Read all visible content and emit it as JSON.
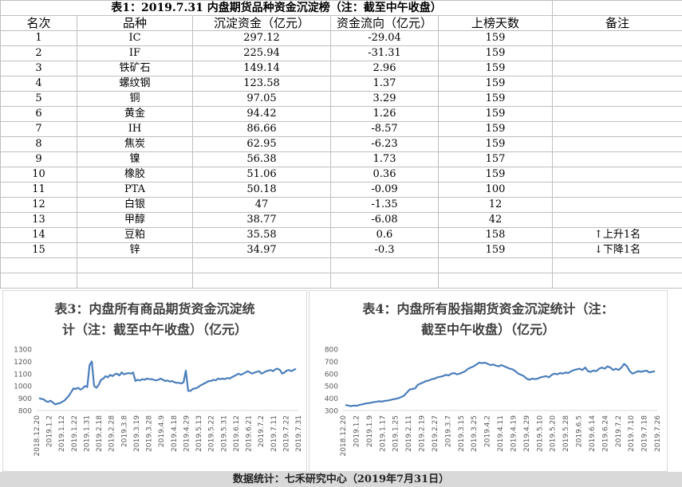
{
  "table": {
    "title": "表1：2019.7.31 内盘期货品种资金沉淀榜（注：截至中午收盘）",
    "headers": [
      "名次",
      "品种",
      "沉淀资金（亿元）",
      "资金流向（亿元）",
      "上榜天数",
      "备注"
    ],
    "rows": [
      [
        "1",
        "IC",
        "297.12",
        "-29.04",
        "159",
        ""
      ],
      [
        "2",
        "IF",
        "225.94",
        "-31.31",
        "159",
        ""
      ],
      [
        "3",
        "铁矿石",
        "149.14",
        "2.96",
        "159",
        ""
      ],
      [
        "4",
        "螺纹钢",
        "123.58",
        "1.37",
        "159",
        ""
      ],
      [
        "5",
        "铜",
        "97.05",
        "3.29",
        "159",
        ""
      ],
      [
        "6",
        "黄金",
        "94.42",
        "1.26",
        "159",
        ""
      ],
      [
        "7",
        "IH",
        "86.66",
        "-8.57",
        "159",
        ""
      ],
      [
        "8",
        "焦炭",
        "62.95",
        "-6.23",
        "159",
        ""
      ],
      [
        "9",
        "镍",
        "56.38",
        "1.73",
        "157",
        ""
      ],
      [
        "10",
        "橡胶",
        "51.06",
        "0.36",
        "159",
        ""
      ],
      [
        "11",
        "PTA",
        "50.18",
        "-0.09",
        "100",
        ""
      ],
      [
        "12",
        "白银",
        "47",
        "-1.35",
        "12",
        ""
      ],
      [
        "13",
        "甲醇",
        "38.77",
        "-6.08",
        "42",
        ""
      ],
      [
        "14",
        "豆粕",
        "35.58",
        "0.6",
        "158",
        "上升1名"
      ],
      [
        "15",
        "锌",
        "34.97",
        "-0.3",
        "159",
        "下降1名"
      ]
    ],
    "remark_arrows": {
      "up": "↑",
      "down": "↓"
    },
    "empty_rows": 2
  },
  "footer": "数据统计：七禾研究中心（2019年7月31日）",
  "chart_data": [
    {
      "type": "line",
      "title": "表3：内盘所有商品期货资金沉淀统计（注：截至中午收盘）（亿元）",
      "title_lines": [
        "表3：内盘所有商品期货资金沉淀统",
        "计（注：截至中午收盘）（亿元）"
      ],
      "ylim": [
        800,
        1300
      ],
      "yticks": [
        800,
        900,
        1000,
        1100,
        1200,
        1300
      ],
      "xticks": [
        "2018.12.20",
        "2019.1.2",
        "2019.1.12",
        "2019.1.22",
        "2019.1.31",
        "2019.2.18",
        "2019.2.28",
        "2019.3.8",
        "2019.3.19",
        "2019.3.28",
        "2019.4.9",
        "2019.4.18",
        "2019.4.29",
        "2019.5.13",
        "2019.5.22",
        "2019.5.31",
        "2019.6.12",
        "2019.6.21",
        "2019.7.2",
        "2019.7.11",
        "2019.7.22",
        "2019.7.31"
      ],
      "color": "#4a7ebb",
      "values": [
        900,
        895,
        890,
        875,
        870,
        880,
        865,
        850,
        855,
        860,
        870,
        880,
        900,
        920,
        950,
        980,
        975,
        985,
        970,
        980,
        1000,
        990,
        1170,
        1200,
        1000,
        985,
        1010,
        1050,
        1060,
        1080,
        1070,
        1090,
        1080,
        1095,
        1100,
        1085,
        1110,
        1095,
        1100,
        1105,
        1100,
        1110,
        1040,
        1050,
        1045,
        1055,
        1050,
        1060,
        1055,
        1055,
        1050,
        1045,
        1050,
        1060,
        1050,
        1040,
        1045,
        1035,
        1040,
        1030,
        1025,
        1025,
        1020,
        1030,
        1125,
        960,
        960,
        975,
        980,
        985,
        1000,
        1010,
        1020,
        1030,
        1040,
        1040,
        1050,
        1045,
        1060,
        1055,
        1060,
        1055,
        1065,
        1060,
        1070,
        1080,
        1090,
        1100,
        1090,
        1100,
        1110,
        1120,
        1110,
        1100,
        1110,
        1115,
        1120,
        1100,
        1110,
        1120,
        1125,
        1130,
        1120,
        1135,
        1140,
        1130,
        1100,
        1110,
        1125,
        1130,
        1120,
        1130,
        1140
      ]
    },
    {
      "type": "line",
      "title": "表4：内盘所有股指期货资金沉淀统计（注：截至中午收盘）（亿元）",
      "title_lines": [
        "表4：内盘所有股指期货资金沉淀统计（注：",
        "截至中午收盘）（亿元）"
      ],
      "ylim": [
        300,
        800
      ],
      "yticks": [
        300,
        400,
        500,
        600,
        700,
        800
      ],
      "xticks": [
        "2018.12.20",
        "2019.1.2",
        "2019.1.9",
        "2019.1.17",
        "2019.1.25",
        "2019.2.11",
        "2019.2.19",
        "2019.2.27",
        "2019.3.7",
        "2019.3.15",
        "2019.3.25",
        "2019.4.2",
        "2019.4.11",
        "2019.4.19",
        "2019.4.29",
        "2019.5.10",
        "2019.5.20",
        "2019.5.28",
        "2019.6.5",
        "2019.6.14",
        "2019.6.24",
        "2019.7.2",
        "2019.7.10",
        "2019.7.18",
        "2019.7.26"
      ],
      "color": "#4a7ebb",
      "values": [
        345,
        340,
        335,
        340,
        338,
        345,
        350,
        355,
        360,
        362,
        368,
        370,
        375,
        372,
        378,
        380,
        385,
        390,
        395,
        400,
        410,
        420,
        445,
        470,
        475,
        480,
        510,
        520,
        530,
        540,
        545,
        555,
        560,
        570,
        575,
        580,
        590,
        585,
        600,
        605,
        595,
        600,
        610,
        620,
        640,
        650,
        660,
        675,
        690,
        685,
        690,
        680,
        670,
        675,
        665,
        660,
        670,
        660,
        650,
        640,
        635,
        620,
        600,
        590,
        580,
        560,
        550,
        560,
        555,
        560,
        570,
        575,
        580,
        570,
        590,
        600,
        595,
        605,
        600,
        610,
        605,
        620,
        630,
        635,
        640,
        630,
        650,
        620,
        615,
        625,
        620,
        640,
        650,
        640,
        660,
        650,
        630,
        640,
        630,
        650,
        680,
        660,
        620,
        600,
        610,
        620,
        615,
        620,
        625,
        610,
        615,
        620
      ]
    }
  ]
}
